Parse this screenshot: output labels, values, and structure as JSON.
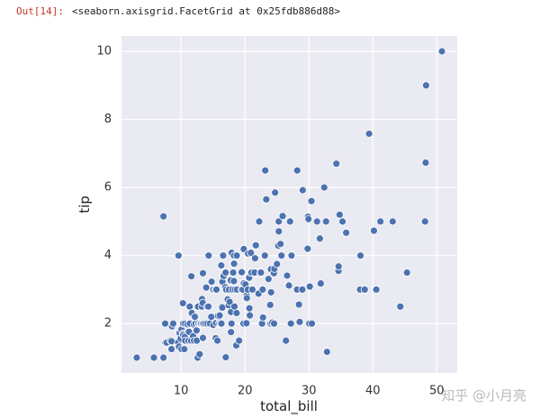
{
  "output": {
    "prompt": "Out[14]:",
    "text": "<seaborn.axisgrid.FacetGrid at 0x25fdb886d88>"
  },
  "watermark": "知乎 @小月亮",
  "chart_data": {
    "type": "scatter",
    "xlabel": "total_bill",
    "ylabel": "tip",
    "color": "#4c72b0",
    "xlim": [
      0.68,
      53.2
    ],
    "ylim": [
      0.55,
      10.45
    ],
    "xticks": [
      10,
      20,
      30,
      40,
      50
    ],
    "yticks": [
      2,
      4,
      6,
      8,
      10
    ],
    "grid": true,
    "x": [
      3.07,
      5.75,
      7.25,
      7.25,
      7.51,
      7.56,
      7.74,
      8.35,
      8.51,
      8.52,
      8.58,
      8.77,
      9.55,
      9.6,
      9.68,
      9.78,
      9.94,
      10.07,
      10.07,
      10.27,
      10.29,
      10.33,
      10.33,
      10.34,
      10.34,
      10.51,
      10.59,
      10.63,
      10.65,
      11.02,
      11.17,
      11.24,
      11.35,
      11.38,
      11.59,
      11.61,
      11.69,
      11.87,
      12.02,
      12.03,
      12.16,
      12.26,
      12.43,
      12.46,
      12.48,
      12.54,
      12.6,
      12.66,
      12.69,
      12.74,
      12.9,
      13.0,
      13.03,
      13.13,
      13.27,
      13.28,
      13.37,
      13.39,
      13.42,
      13.42,
      13.51,
      13.81,
      13.94,
      14.07,
      14.15,
      14.26,
      14.31,
      14.52,
      14.73,
      14.78,
      15.04,
      15.06,
      15.38,
      15.42,
      15.48,
      15.53,
      15.69,
      15.77,
      15.98,
      16.0,
      16.04,
      16.21,
      16.27,
      16.29,
      16.31,
      16.4,
      16.45,
      16.47,
      16.58,
      16.66,
      16.93,
      16.97,
      16.99,
      17.07,
      17.29,
      17.46,
      17.51,
      17.59,
      17.78,
      17.81,
      17.82,
      17.89,
      17.92,
      18.04,
      18.15,
      18.24,
      18.26,
      18.28,
      18.29,
      18.35,
      18.43,
      18.64,
      18.69,
      18.71,
      18.78,
      19.08,
      19.44,
      19.49,
      19.65,
      19.77,
      19.81,
      19.82,
      20.08,
      20.23,
      20.27,
      20.29,
      20.45,
      20.49,
      20.65,
      20.69,
      20.76,
      20.9,
      20.92,
      21.01,
      21.16,
      21.5,
      21.58,
      21.7,
      22.12,
      22.23,
      22.42,
      22.49,
      22.67,
      22.76,
      22.82,
      23.1,
      23.17,
      23.33,
      23.68,
      23.95,
      24.01,
      24.06,
      24.08,
      24.27,
      24.52,
      24.55,
      24.59,
      24.71,
      25.0,
      25.21,
      25.28,
      25.29,
      25.56,
      25.71,
      25.89,
      26.41,
      26.59,
      26.86,
      26.88,
      27.05,
      27.18,
      27.2,
      27.28,
      28.15,
      28.17,
      28.44,
      28.55,
      28.97,
      29.03,
      29.8,
      29.85,
      29.93,
      30.06,
      30.14,
      30.4,
      30.46,
      31.27,
      31.71,
      31.85,
      32.4,
      32.68,
      32.83,
      34.3,
      34.63,
      34.65,
      34.81,
      35.26,
      35.83,
      38.01,
      38.07,
      38.73,
      39.42,
      40.17,
      40.55,
      41.19,
      43.11,
      44.3,
      45.35,
      48.17,
      48.27,
      48.33,
      50.81
    ],
    "y": [
      1.0,
      1.0,
      1.0,
      5.15,
      2.0,
      1.44,
      1.44,
      1.5,
      1.25,
      1.48,
      1.92,
      2.0,
      1.45,
      4.0,
      1.32,
      1.73,
      1.56,
      1.25,
      1.83,
      1.71,
      2.6,
      1.67,
      2.0,
      1.66,
      2.0,
      1.25,
      1.61,
      2.0,
      1.5,
      1.98,
      1.5,
      1.76,
      2.5,
      2.0,
      1.5,
      3.39,
      2.31,
      1.63,
      1.97,
      1.5,
      2.2,
      2.0,
      1.8,
      1.5,
      2.52,
      2.5,
      1.0,
      2.5,
      2.0,
      2.01,
      1.1,
      2.0,
      2.0,
      2.0,
      2.5,
      2.72,
      2.0,
      2.61,
      3.48,
      1.58,
      2.0,
      2.0,
      3.06,
      2.5,
      2.0,
      2.5,
      4.0,
      2.0,
      2.2,
      3.23,
      1.96,
      3.0,
      3.0,
      1.57,
      2.02,
      3.0,
      1.5,
      2.23,
      2.03,
      2.0,
      2.24,
      2.0,
      2.5,
      3.71,
      2.0,
      2.5,
      2.47,
      3.23,
      4.0,
      3.4,
      3.07,
      3.5,
      1.01,
      3.0,
      2.71,
      2.54,
      3.0,
      2.64,
      3.27,
      2.34,
      1.75,
      2.0,
      4.08,
      3.0,
      3.5,
      3.76,
      3.25,
      4.0,
      3.76,
      2.5,
      3.0,
      1.36,
      2.31,
      4.0,
      3.0,
      1.5,
      3.0,
      3.51,
      3.0,
      2.0,
      4.19,
      3.18,
      3.15,
      2.01,
      2.83,
      2.75,
      3.0,
      4.06,
      3.35,
      2.45,
      2.24,
      3.5,
      4.08,
      3.5,
      3.0,
      3.5,
      3.92,
      4.3,
      2.88,
      5.0,
      3.48,
      3.5,
      2.0,
      3.0,
      2.18,
      4.0,
      6.5,
      5.65,
      3.31,
      2.55,
      2.0,
      3.6,
      2.92,
      2.03,
      3.48,
      2.0,
      3.61,
      5.85,
      3.75,
      4.29,
      5.0,
      4.71,
      4.34,
      4.0,
      5.16,
      1.5,
      3.41,
      3.14,
      3.12,
      5.0,
      2.0,
      4.0,
      4.0,
      3.0,
      6.5,
      2.56,
      2.05,
      3.0,
      5.92,
      4.2,
      5.14,
      5.07,
      2.0,
      3.09,
      5.6,
      2.0,
      5.0,
      4.5,
      3.18,
      6.0,
      5.0,
      1.17,
      6.7,
      3.55,
      3.68,
      5.2,
      5.0,
      4.67,
      3.0,
      4.0,
      3.0,
      7.58,
      4.73,
      3.0,
      5.0,
      5.0,
      2.5,
      3.5,
      5.0,
      6.73,
      9.0,
      10.0
    ]
  }
}
